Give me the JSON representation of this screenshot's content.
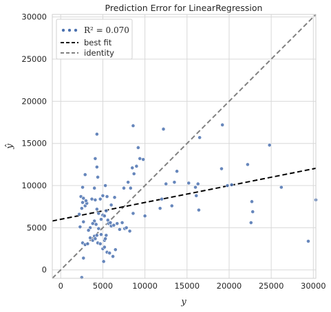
{
  "chart_data": {
    "type": "scatter",
    "title": "Prediction Error for LinearRegression",
    "xlabel": "y",
    "ylabel": "ŷ",
    "xlim": [
      -1000,
      30300
    ],
    "ylim": [
      -1000,
      30300
    ],
    "xticks": [
      "0",
      "5000",
      "10000",
      "15000",
      "20000",
      "25000",
      "30000"
    ],
    "yticks": [
      "0",
      "5000",
      "10000",
      "15000",
      "20000",
      "25000",
      "30000"
    ],
    "grid": true,
    "legend_position": "top-left",
    "colors": {
      "points": "#4c72b0",
      "best_fit": "#000000",
      "identity": "#808080",
      "grid": "#d8d8d8"
    },
    "legend": [
      {
        "label": "R² = 0.070",
        "style": "points"
      },
      {
        "label": "best fit",
        "style": "dashed-black"
      },
      {
        "label": "identity",
        "style": "dashed-gray"
      }
    ],
    "best_fit": {
      "x": [
        -1000,
        30300
      ],
      "y": [
        5800,
        12050
      ]
    },
    "identity": {
      "x": [
        -1000,
        30300
      ],
      "y": [
        -1000,
        30300
      ]
    },
    "points": [
      [
        2500,
        -900
      ],
      [
        2700,
        1400
      ],
      [
        2600,
        3200
      ],
      [
        2900,
        3000
      ],
      [
        3200,
        3100
      ],
      [
        3500,
        3800
      ],
      [
        3800,
        3500
      ],
      [
        4000,
        4000
      ],
      [
        4100,
        3700
      ],
      [
        4300,
        4100
      ],
      [
        4400,
        3200
      ],
      [
        4700,
        3100
      ],
      [
        5000,
        2500
      ],
      [
        5100,
        1000
      ],
      [
        5200,
        2700
      ],
      [
        5500,
        2100
      ],
      [
        5800,
        2000
      ],
      [
        6200,
        1600
      ],
      [
        6500,
        2400
      ],
      [
        5200,
        3500
      ],
      [
        5300,
        3700
      ],
      [
        5400,
        4100
      ],
      [
        4800,
        4200
      ],
      [
        4500,
        4900
      ],
      [
        4200,
        5400
      ],
      [
        4000,
        5800
      ],
      [
        3800,
        5500
      ],
      [
        3500,
        5000
      ],
      [
        3300,
        4700
      ],
      [
        2700,
        5700
      ],
      [
        2300,
        5100
      ],
      [
        2200,
        6600
      ],
      [
        2500,
        7300
      ],
      [
        2600,
        8000
      ],
      [
        2900,
        7600
      ],
      [
        3100,
        7900
      ],
      [
        2600,
        9800
      ],
      [
        2400,
        8700
      ],
      [
        2700,
        8500
      ],
      [
        3000,
        8200
      ],
      [
        3700,
        8400
      ],
      [
        4100,
        8300
      ],
      [
        4300,
        7200
      ],
      [
        4500,
        6700
      ],
      [
        4800,
        6000
      ],
      [
        5000,
        6500
      ],
      [
        5200,
        6400
      ],
      [
        5400,
        7000
      ],
      [
        5600,
        5900
      ],
      [
        5700,
        5500
      ],
      [
        5900,
        5600
      ],
      [
        6000,
        5200
      ],
      [
        6300,
        5300
      ],
      [
        6700,
        5500
      ],
      [
        7000,
        4800
      ],
      [
        7300,
        5600
      ],
      [
        7600,
        4900
      ],
      [
        7800,
        5000
      ],
      [
        8200,
        4600
      ],
      [
        8600,
        6700
      ],
      [
        4700,
        8400
      ],
      [
        5000,
        8800
      ],
      [
        5300,
        10000
      ],
      [
        5500,
        8700
      ],
      [
        6000,
        7700
      ],
      [
        6400,
        8600
      ],
      [
        4000,
        9700
      ],
      [
        4400,
        11000
      ],
      [
        4300,
        12200
      ],
      [
        4100,
        13200
      ],
      [
        4300,
        16100
      ],
      [
        2900,
        11300
      ],
      [
        7500,
        9700
      ],
      [
        8000,
        10400
      ],
      [
        8300,
        9700
      ],
      [
        8500,
        12100
      ],
      [
        8700,
        11400
      ],
      [
        9000,
        12300
      ],
      [
        9200,
        14500
      ],
      [
        9400,
        13200
      ],
      [
        8600,
        17100
      ],
      [
        9800,
        13100
      ],
      [
        10000,
        6400
      ],
      [
        11800,
        7300
      ],
      [
        12000,
        8400
      ],
      [
        12200,
        16700
      ],
      [
        12500,
        10200
      ],
      [
        13200,
        7600
      ],
      [
        13500,
        10400
      ],
      [
        13800,
        11700
      ],
      [
        15200,
        10300
      ],
      [
        16000,
        9800
      ],
      [
        16300,
        10200
      ],
      [
        16400,
        7100
      ],
      [
        16500,
        15700
      ],
      [
        16100,
        8800
      ],
      [
        19100,
        12000
      ],
      [
        19200,
        17200
      ],
      [
        19800,
        10000
      ],
      [
        20300,
        10100
      ],
      [
        22200,
        12500
      ],
      [
        22600,
        5600
      ],
      [
        22700,
        8100
      ],
      [
        22800,
        6900
      ],
      [
        24800,
        14800
      ],
      [
        26200,
        9800
      ],
      [
        29400,
        3400
      ],
      [
        30300,
        8300
      ]
    ]
  }
}
